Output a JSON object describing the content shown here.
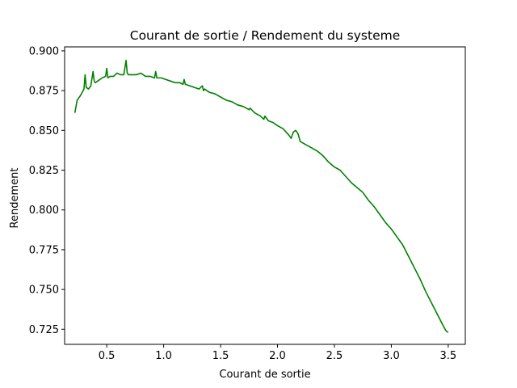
{
  "chart_data": {
    "type": "line",
    "title": "Courant de sortie / Rendement du systeme",
    "xlabel": "Courant de sortie",
    "ylabel": "Rendement",
    "xlim": [
      0.13,
      3.65
    ],
    "ylim": [
      0.7155,
      0.9025
    ],
    "xticks": [
      0.5,
      1.0,
      1.5,
      2.0,
      2.5,
      3.0,
      3.5
    ],
    "xtick_labels": [
      "0.5",
      "1.0",
      "1.5",
      "2.0",
      "2.5",
      "3.0",
      "3.5"
    ],
    "yticks": [
      0.725,
      0.75,
      0.775,
      0.8,
      0.825,
      0.85,
      0.875,
      0.9
    ],
    "ytick_labels": [
      "0.725",
      "0.750",
      "0.775",
      "0.800",
      "0.825",
      "0.850",
      "0.875",
      "0.900"
    ],
    "grid": false,
    "series": [
      {
        "color": "#008000",
        "x": [
          0.22,
          0.24,
          0.27,
          0.3,
          0.31,
          0.32,
          0.34,
          0.36,
          0.38,
          0.39,
          0.4,
          0.42,
          0.46,
          0.49,
          0.5,
          0.51,
          0.53,
          0.56,
          0.59,
          0.62,
          0.65,
          0.67,
          0.68,
          0.69,
          0.72,
          0.76,
          0.8,
          0.84,
          0.88,
          0.92,
          0.93,
          0.94,
          0.98,
          1.02,
          1.06,
          1.1,
          1.14,
          1.17,
          1.18,
          1.19,
          1.23,
          1.27,
          1.31,
          1.34,
          1.35,
          1.36,
          1.4,
          1.45,
          1.5,
          1.55,
          1.6,
          1.65,
          1.7,
          1.75,
          1.76,
          1.8,
          1.85,
          1.88,
          1.89,
          1.92,
          1.96,
          2.0,
          2.05,
          2.1,
          2.12,
          2.14,
          2.16,
          2.18,
          2.2,
          2.25,
          2.3,
          2.35,
          2.4,
          2.45,
          2.5,
          2.55,
          2.6,
          2.65,
          2.7,
          2.75,
          2.8,
          2.85,
          2.9,
          2.95,
          3.0,
          3.05,
          3.1,
          3.15,
          3.2,
          3.25,
          3.3,
          3.35,
          3.4,
          3.45,
          3.48,
          3.5
        ],
        "y": [
          0.861,
          0.869,
          0.872,
          0.876,
          0.885,
          0.877,
          0.876,
          0.878,
          0.887,
          0.881,
          0.88,
          0.881,
          0.883,
          0.884,
          0.889,
          0.883,
          0.884,
          0.884,
          0.886,
          0.885,
          0.885,
          0.894,
          0.886,
          0.885,
          0.885,
          0.885,
          0.886,
          0.884,
          0.884,
          0.883,
          0.887,
          0.883,
          0.883,
          0.882,
          0.881,
          0.88,
          0.88,
          0.879,
          0.882,
          0.879,
          0.878,
          0.877,
          0.876,
          0.878,
          0.875,
          0.876,
          0.874,
          0.873,
          0.871,
          0.869,
          0.868,
          0.866,
          0.865,
          0.863,
          0.864,
          0.861,
          0.859,
          0.857,
          0.859,
          0.856,
          0.855,
          0.853,
          0.851,
          0.847,
          0.845,
          0.849,
          0.85,
          0.848,
          0.843,
          0.841,
          0.839,
          0.837,
          0.834,
          0.83,
          0.827,
          0.825,
          0.821,
          0.817,
          0.814,
          0.811,
          0.806,
          0.802,
          0.797,
          0.792,
          0.788,
          0.783,
          0.778,
          0.771,
          0.764,
          0.757,
          0.749,
          0.742,
          0.735,
          0.728,
          0.724,
          0.723
        ]
      }
    ]
  }
}
